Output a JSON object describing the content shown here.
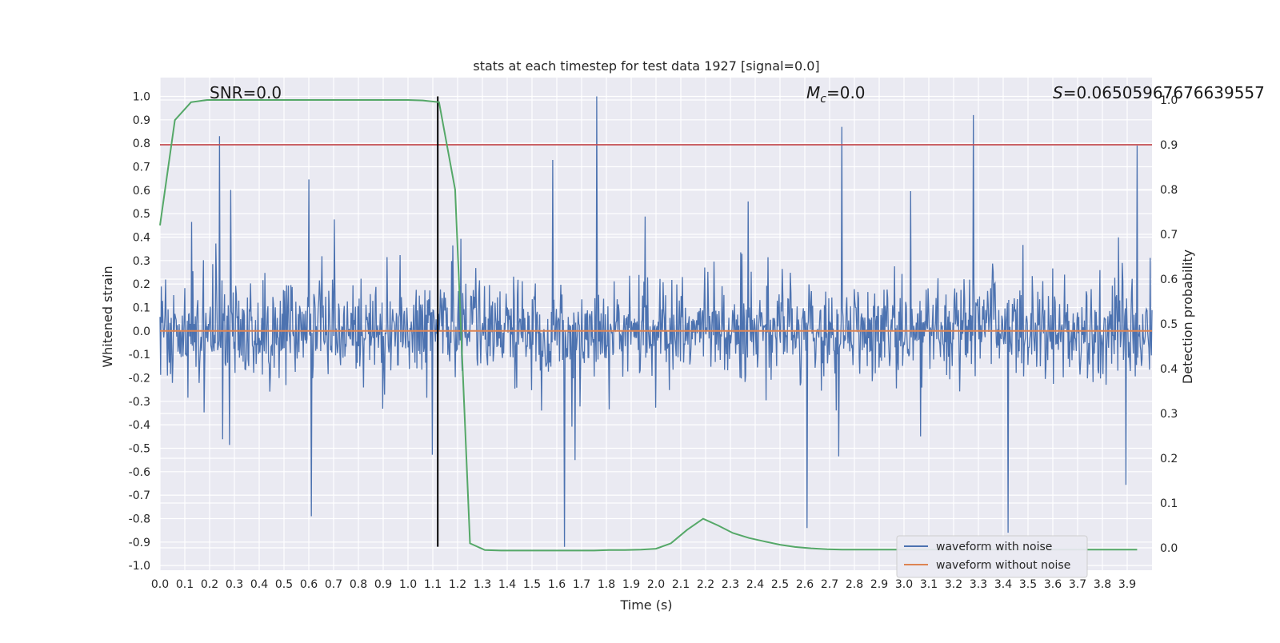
{
  "chart_data": {
    "type": "line",
    "title": "stats at each timestep for test data 1927 [signal=0.0]",
    "xlabel": "Time (s)",
    "ylabel": "Whitened strain",
    "y2label": "Detection probability",
    "xlim": [
      0.0,
      4.0
    ],
    "ylim": [
      -1.02,
      1.08
    ],
    "y2lim": [
      -0.05,
      1.05
    ],
    "x_ticks": [
      "0.0",
      "0.1",
      "0.2",
      "0.3",
      "0.4",
      "0.5",
      "0.6",
      "0.7",
      "0.8",
      "0.9",
      "1.0",
      "1.1",
      "1.2",
      "1.3",
      "1.4",
      "1.5",
      "1.6",
      "1.7",
      "1.8",
      "1.9",
      "2.0",
      "2.1",
      "2.2",
      "2.3",
      "2.4",
      "2.5",
      "2.6",
      "2.7",
      "2.8",
      "2.9",
      "3.0",
      "3.1",
      "3.2",
      "3.3",
      "3.4",
      "3.5",
      "3.6",
      "3.7",
      "3.8",
      "3.9"
    ],
    "y_ticks": [
      "1.0",
      "0.9",
      "0.8",
      "0.7",
      "0.6",
      "0.5",
      "0.4",
      "0.3",
      "0.2",
      "0.1",
      "0.0",
      "-0.1",
      "-0.2",
      "-0.3",
      "-0.4",
      "-0.5",
      "-0.6",
      "-0.7",
      "-0.8",
      "-0.9",
      "-1.0"
    ],
    "y2_ticks": [
      "1.0",
      "0.9",
      "0.8",
      "0.7",
      "0.6",
      "0.5",
      "0.4",
      "0.3",
      "0.2",
      "0.1",
      "0.0"
    ],
    "grid": true,
    "legend_position": "lower-right",
    "annotations": {
      "snr": "SNR=0.0",
      "mc": "=0.0",
      "mc_symbol": "M",
      "mc_subscript": "c",
      "s": "=0.06505967676639557",
      "s_symbol": "S"
    },
    "series": [
      {
        "name": "waveform with noise",
        "color": "#4c72b0",
        "axis": "left",
        "description_kind": "noise",
        "envelope": [
          -0.55,
          0.55
        ],
        "notable_peaks": [
          {
            "x": 0.24,
            "y": 0.83
          },
          {
            "x": 1.76,
            "y": 1.0
          },
          {
            "x": 2.75,
            "y": 0.87
          },
          {
            "x": 3.28,
            "y": 0.92
          },
          {
            "x": 3.94,
            "y": 0.79
          }
        ],
        "notable_troughs": [
          {
            "x": 0.61,
            "y": -0.79
          },
          {
            "x": 1.63,
            "y": -0.92
          },
          {
            "x": 2.61,
            "y": -0.84
          },
          {
            "x": 3.42,
            "y": -0.86
          }
        ]
      },
      {
        "name": "waveform without noise",
        "color": "#dd8452",
        "axis": "left",
        "x": [
          0.0,
          4.0
        ],
        "y": [
          0.0,
          0.0
        ]
      },
      {
        "name": "",
        "color": "#55a868",
        "axis": "right",
        "x": [
          0.0,
          0.06,
          0.125,
          0.19,
          0.25,
          0.31,
          0.375,
          0.44,
          0.5,
          0.56,
          0.625,
          0.69,
          0.75,
          0.81,
          0.875,
          0.94,
          1.0,
          1.06,
          1.125,
          1.19,
          1.25,
          1.31,
          1.375,
          1.44,
          1.5,
          1.56,
          1.625,
          1.69,
          1.75,
          1.81,
          1.875,
          1.94,
          2.0,
          2.06,
          2.125,
          2.19,
          2.25,
          2.31,
          2.375,
          2.44,
          2.5,
          2.56,
          2.625,
          2.69,
          2.75,
          2.81,
          2.875,
          2.94,
          3.0,
          3.06,
          3.125,
          3.19,
          3.25,
          3.31,
          3.375,
          3.44,
          3.5,
          3.56,
          3.625,
          3.69,
          3.75,
          3.81,
          3.875,
          3.94
        ],
        "y": [
          0.72,
          0.955,
          0.995,
          1.0,
          1.0,
          1.0,
          1.0,
          1.0,
          1.0,
          1.0,
          1.0,
          1.0,
          1.0,
          1.0,
          1.0,
          1.0,
          1.0,
          0.999,
          0.995,
          0.8,
          0.01,
          -0.005,
          -0.006,
          -0.006,
          -0.006,
          -0.006,
          -0.006,
          -0.006,
          -0.006,
          -0.005,
          -0.005,
          -0.004,
          -0.002,
          0.01,
          0.04,
          0.065,
          0.05,
          0.033,
          0.022,
          0.014,
          0.007,
          0.002,
          -0.001,
          -0.003,
          -0.004,
          -0.004,
          -0.004,
          -0.004,
          -0.004,
          -0.004,
          -0.004,
          -0.004,
          -0.004,
          -0.004,
          -0.004,
          -0.004,
          -0.004,
          -0.004,
          -0.004,
          -0.004,
          -0.004,
          -0.004,
          -0.004,
          -0.004
        ]
      }
    ],
    "threshold": {
      "axis": "right",
      "value": 0.9,
      "color": "#c44e52"
    },
    "marker_line": {
      "x": 1.12,
      "y_from": 1.0,
      "y_to": -0.92,
      "axis": "left",
      "color": "#000000"
    }
  },
  "legend": [
    {
      "label": "waveform with noise",
      "color": "#4c72b0"
    },
    {
      "label": "waveform without noise",
      "color": "#dd8452"
    }
  ]
}
